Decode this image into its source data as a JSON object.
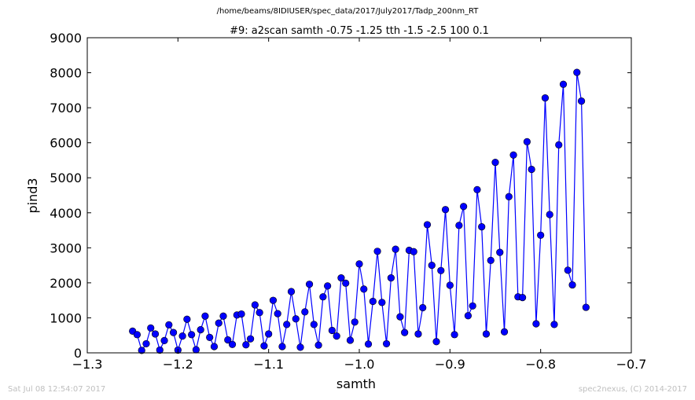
{
  "suptitle": "/home/beams/8IDIUSER/spec_data/2017/July2017/Tadp_200nm_RT",
  "footer_left": "Sat Jul 08 12:54:07 2017",
  "footer_right": "spec2nexus, (C) 2014-2017",
  "colors": {
    "series": "#0000ff",
    "marker": "#0000ff"
  },
  "chart_data": {
    "type": "line",
    "title": "#9: a2scan  samth -0.75 -1.25  tth -1.5 -2.5  100 0.1",
    "xlabel": "samth",
    "ylabel": "pind3",
    "xlim": [
      -1.3,
      -0.7
    ],
    "ylim": [
      0,
      9000
    ],
    "xticks": [
      -1.3,
      -1.2,
      -1.1,
      -1.0,
      -0.9,
      -0.8,
      -0.7
    ],
    "xtick_labels": [
      "−1.3",
      "−1.2",
      "−1.1",
      "−1.0",
      "−0.9",
      "−0.8",
      "−0.7"
    ],
    "yticks": [
      0,
      1000,
      2000,
      3000,
      4000,
      5000,
      6000,
      7000,
      8000,
      9000
    ],
    "ytick_labels": [
      "0",
      "1000",
      "2000",
      "3000",
      "4000",
      "5000",
      "6000",
      "7000",
      "8000",
      "9000"
    ],
    "grid": false,
    "legend": "none",
    "marker": "circle",
    "x": [
      -1.25,
      -1.245,
      -1.24,
      -1.235,
      -1.23,
      -1.225,
      -1.22,
      -1.215,
      -1.21,
      -1.205,
      -1.2,
      -1.195,
      -1.19,
      -1.185,
      -1.18,
      -1.175,
      -1.17,
      -1.165,
      -1.16,
      -1.155,
      -1.15,
      -1.145,
      -1.14,
      -1.135,
      -1.13,
      -1.125,
      -1.12,
      -1.115,
      -1.11,
      -1.105,
      -1.1,
      -1.095,
      -1.09,
      -1.085,
      -1.08,
      -1.075,
      -1.07,
      -1.065,
      -1.06,
      -1.055,
      -1.05,
      -1.045,
      -1.04,
      -1.035,
      -1.03,
      -1.025,
      -1.02,
      -1.015,
      -1.01,
      -1.005,
      -1.0,
      -0.995,
      -0.99,
      -0.985,
      -0.98,
      -0.975,
      -0.97,
      -0.965,
      -0.96,
      -0.955,
      -0.95,
      -0.945,
      -0.94,
      -0.935,
      -0.93,
      -0.925,
      -0.92,
      -0.915,
      -0.91,
      -0.905,
      -0.9,
      -0.895,
      -0.89,
      -0.885,
      -0.88,
      -0.875,
      -0.87,
      -0.865,
      -0.86,
      -0.855,
      -0.85,
      -0.845,
      -0.84,
      -0.835,
      -0.83,
      -0.825,
      -0.82,
      -0.815,
      -0.81,
      -0.805,
      -0.8,
      -0.795,
      -0.79,
      -0.785,
      -0.78,
      -0.775,
      -0.77,
      -0.765,
      -0.76,
      -0.755,
      -0.75
    ],
    "y": [
      620,
      520,
      70,
      260,
      710,
      540,
      80,
      350,
      800,
      580,
      80,
      480,
      960,
      520,
      90,
      660,
      1050,
      440,
      180,
      850,
      1050,
      370,
      240,
      1080,
      1110,
      230,
      400,
      1370,
      1150,
      200,
      540,
      1500,
      1120,
      180,
      810,
      1750,
      970,
      160,
      1170,
      1960,
      810,
      220,
      1600,
      1910,
      640,
      480,
      2140,
      1990,
      360,
      880,
      2540,
      1820,
      250,
      1470,
      2900,
      1440,
      260,
      2140,
      2960,
      1030,
      580,
      2930,
      2890,
      540,
      1290,
      3660,
      2500,
      320,
      2350,
      4090,
      1930,
      520,
      3640,
      4180,
      1060,
      1340,
      4660,
      3600,
      540,
      2640,
      5440,
      2870,
      600,
      4460,
      5650,
      1600,
      1580,
      6030,
      5240,
      830,
      3360,
      7280,
      3950,
      810,
      5940,
      7670,
      2360,
      1940,
      8010,
      7190,
      1300
    ]
  }
}
